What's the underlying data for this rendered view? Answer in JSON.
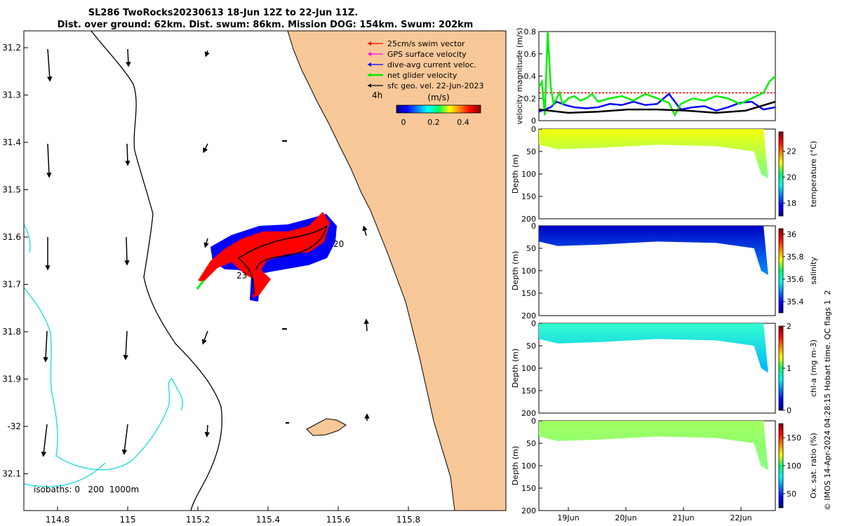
{
  "title": {
    "line1": "SL286 TwoRocks20230613 18-Jun 12Z to 22-Jun 11Z.",
    "line2": "Dist. over ground: 62km. Dist. swum: 86km. Mission DOG: 154km. Swum: 202km"
  },
  "colors": {
    "land": "#f9c898",
    "isobath": "#33dede",
    "swim": "#ff0000",
    "gps": "#ff00ff",
    "diveavg": "#0000ff",
    "net": "#00ee00",
    "geo": "#000000"
  },
  "map": {
    "lat_ticks": [
      "31.2",
      "31.3",
      "31.4",
      "31.5",
      "31.6",
      "31.7",
      "31.8",
      "31.9",
      "-32",
      "32.1"
    ],
    "lon_ticks": [
      "114.8",
      "115",
      "115.2",
      "115.4",
      "115.6",
      "115.8"
    ],
    "isobath_label": "isobaths: 0   200  1000m",
    "point_labels": [
      "20",
      "23",
      "4h"
    ],
    "speed_label": "(m/s)",
    "speed_ticks": [
      "0",
      "0.2",
      "0.4"
    ]
  },
  "legend": [
    {
      "label": "25cm/s swim vector",
      "color": "#ff0000"
    },
    {
      "label": "GPS surface velocity",
      "color": "#ff00ff"
    },
    {
      "label": "dive-avg current veloc.",
      "color": "#0000ff"
    },
    {
      "label": "net glider velocity",
      "color": "#00ee00"
    },
    {
      "label": "sfc geo. vel. 22-Jun-2023",
      "color": "#000000"
    }
  ],
  "footer": "© IMOS 14-Apr-2024 04:28:15 Hobart time. QC flags 1  2",
  "chart_data": [
    {
      "type": "line",
      "title": "",
      "ylabel": "velocity magnitude (m/s)",
      "ylim": [
        0,
        0.8
      ],
      "yticks": [
        "0",
        "0.2",
        "0.4",
        "0.6",
        "0.8"
      ],
      "xlim": [
        0,
        4
      ],
      "series": [
        {
          "name": "25cm/s swim vector",
          "x": [
            0,
            4
          ],
          "values": [
            0.25,
            0.25
          ]
        },
        {
          "name": "dive-avg current veloc.",
          "x": [
            0,
            0.2,
            0.3,
            0.45,
            0.6,
            0.8,
            1.0,
            1.2,
            1.4,
            1.6,
            1.8,
            2.0,
            2.2,
            2.4,
            2.6,
            2.8,
            3.0,
            3.2,
            3.4,
            3.6,
            3.8,
            4.0
          ],
          "values": [
            0.08,
            0.12,
            0.17,
            0.14,
            0.12,
            0.11,
            0.12,
            0.15,
            0.14,
            0.17,
            0.14,
            0.15,
            0.24,
            0.1,
            0.12,
            0.13,
            0.09,
            0.12,
            0.16,
            0.17,
            0.1,
            0.12
          ]
        },
        {
          "name": "net glider velocity",
          "x": [
            0,
            0.05,
            0.1,
            0.15,
            0.2,
            0.25,
            0.3,
            0.35,
            0.4,
            0.5,
            0.6,
            0.7,
            0.8,
            0.9,
            1.0,
            1.2,
            1.4,
            1.6,
            1.8,
            2.0,
            2.2,
            2.3,
            2.4,
            2.6,
            2.8,
            3.0,
            3.2,
            3.4,
            3.6,
            3.8,
            3.9,
            4.0
          ],
          "values": [
            0.3,
            0.35,
            0.05,
            0.8,
            0.3,
            0.15,
            0.2,
            0.25,
            0.15,
            0.2,
            0.22,
            0.18,
            0.2,
            0.24,
            0.17,
            0.2,
            0.22,
            0.18,
            0.24,
            0.2,
            0.16,
            0.05,
            0.15,
            0.2,
            0.18,
            0.22,
            0.2,
            0.15,
            0.2,
            0.25,
            0.35,
            0.4
          ]
        },
        {
          "name": "sfc geo. vel.",
          "x": [
            0,
            0.5,
            1.0,
            1.5,
            2.0,
            2.5,
            3.0,
            3.5,
            4.0
          ],
          "values": [
            0.1,
            0.07,
            0.08,
            0.1,
            0.1,
            0.09,
            0.07,
            0.09,
            0.17
          ]
        }
      ]
    },
    {
      "type": "heatmap",
      "ylabel": "Depth (m)",
      "cbar_label": "temperature (°C)",
      "clim": [
        17,
        23.5
      ],
      "cbar_ticks": [
        "18",
        "20",
        "22"
      ],
      "yticks": [
        "0",
        "50",
        "100",
        "150",
        "200"
      ],
      "x_ticks": [
        "19Jun",
        "20Jun",
        "21Jun",
        "22Jun"
      ],
      "surface_value": 21.0,
      "deep_value": 20.2
    },
    {
      "type": "heatmap",
      "ylabel": "Depth (m)",
      "cbar_label": "salinity",
      "clim": [
        35.3,
        36.05
      ],
      "cbar_ticks": [
        "35.4",
        "35.6",
        "35.8",
        "36"
      ],
      "yticks": [
        "0",
        "50",
        "100",
        "150",
        "200"
      ],
      "x_ticks": [
        "19Jun",
        "20Jun",
        "21Jun",
        "22Jun"
      ],
      "surface_value": 35.35,
      "deep_value": 35.5
    },
    {
      "type": "heatmap",
      "ylabel": "Depth (m)",
      "cbar_label": "chl-a (mg m-3)",
      "clim": [
        0,
        2
      ],
      "cbar_ticks": [
        "0",
        "1",
        "2"
      ],
      "yticks": [
        "0",
        "50",
        "100",
        "150",
        "200"
      ],
      "x_ticks": [
        "19Jun",
        "20Jun",
        "21Jun",
        "22Jun"
      ],
      "surface_value": 0.85,
      "deep_value": 0.6
    },
    {
      "type": "heatmap",
      "ylabel": "Depth (m)",
      "cbar_label": "Ox. sat. ratio (%)",
      "clim": [
        25,
        175
      ],
      "cbar_ticks": [
        "50",
        "100",
        "150"
      ],
      "yticks": [
        "0",
        "50",
        "100",
        "150",
        "200"
      ],
      "x_ticks": [
        "19Jun",
        "20Jun",
        "21Jun",
        "22Jun"
      ],
      "surface_value": 105,
      "deep_value": 100
    }
  ]
}
